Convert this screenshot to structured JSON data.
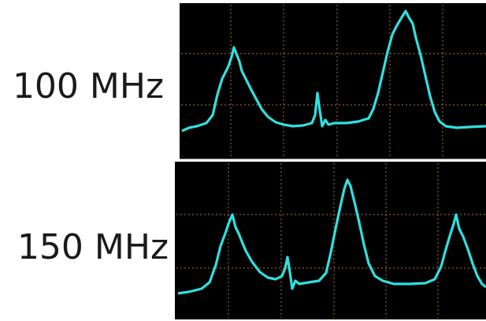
{
  "panels": [
    {
      "label": "100 MHz"
    },
    {
      "label": "150 MHz"
    }
  ]
}
